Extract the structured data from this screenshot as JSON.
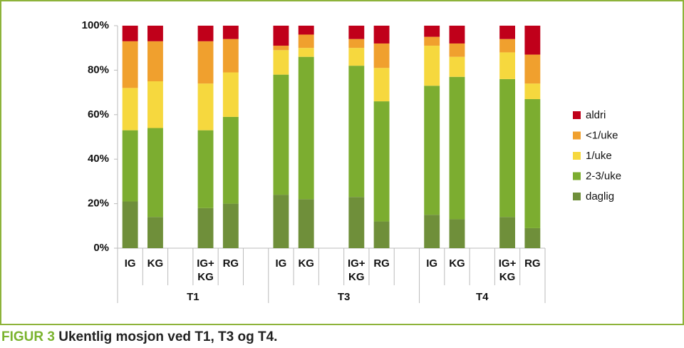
{
  "chart_data": {
    "type": "stacked_bar_percent",
    "caption_label": "FIGUR 3",
    "caption": "Ukentlig mosjon ved T1, T3 og T4.",
    "categories": [
      "IG",
      "KG",
      null,
      "IG+\nKG",
      "RG",
      null,
      "IG",
      "KG",
      null,
      "IG+\nKG",
      "RG",
      null,
      "IG",
      "KG",
      null,
      "IG+\nKG",
      "RG"
    ],
    "groups": [
      "T1",
      "T3",
      "T4"
    ],
    "series": [
      {
        "name": "daglig",
        "color": "#6f8f3a",
        "values": [
          21,
          14,
          null,
          18,
          20,
          null,
          24,
          22,
          null,
          23,
          12,
          null,
          15,
          13,
          null,
          14,
          9
        ]
      },
      {
        "name": "2-3/uke",
        "color": "#7cad30",
        "values": [
          32,
          40,
          null,
          35,
          39,
          null,
          54,
          64,
          null,
          59,
          54,
          null,
          58,
          64,
          null,
          62,
          58
        ]
      },
      {
        "name": "1/uke",
        "color": "#f6d83e",
        "values": [
          19,
          21,
          null,
          21,
          20,
          null,
          11,
          4,
          null,
          8,
          15,
          null,
          18,
          9,
          null,
          12,
          7
        ]
      },
      {
        "name": "<1/uke",
        "color": "#f0a02e",
        "values": [
          21,
          18,
          null,
          19,
          15,
          null,
          2,
          6,
          null,
          4,
          11,
          null,
          4,
          6,
          null,
          6,
          13
        ]
      },
      {
        "name": "aldri",
        "color": "#c0001a",
        "values": [
          7,
          7,
          null,
          7,
          6,
          null,
          9,
          4,
          null,
          6,
          8,
          null,
          5,
          8,
          null,
          6,
          13
        ]
      }
    ],
    "ylim": [
      0,
      100
    ],
    "yticks": [
      {
        "value": 0,
        "label": "0%"
      },
      {
        "value": 20,
        "label": "20%"
      },
      {
        "value": 40,
        "label": "40%"
      },
      {
        "value": 60,
        "label": "60%"
      },
      {
        "value": 80,
        "label": "80%"
      },
      {
        "value": 100,
        "label": "100%"
      }
    ],
    "legend": "right"
  }
}
